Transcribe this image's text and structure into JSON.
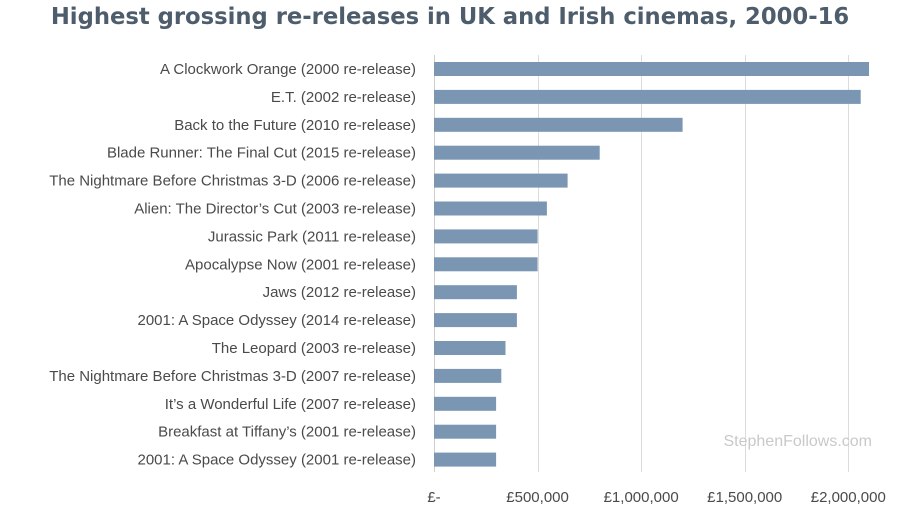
{
  "chart_data": {
    "type": "bar",
    "orientation": "horizontal",
    "title": "Highest grossing re-releases in UK and Irish cinemas, 2000-16",
    "watermark": "StephenFollows.com",
    "categories": [
      "A Clockwork Orange (2000 re-release)",
      "E.T. (2002 re-release)",
      "Back to the Future (2010 re-release)",
      "Blade Runner: The Final Cut (2015 re-release)",
      "The Nightmare Before Christmas 3-D (2006 re-release)",
      "Alien: The Director’s Cut (2003 re-release)",
      "Jurassic Park (2011 re-release)",
      "Apocalypse Now (2001 re-release)",
      "Jaws (2012 re-release)",
      "2001: A Space Odyssey (2014 re-release)",
      "The Leopard (2003 re-release)",
      "The Nightmare Before Christmas 3-D (2007 re-release)",
      "It’s a Wonderful Life (2007 re-release)",
      "Breakfast at Tiffany’s (2001 re-release)",
      "2001: A Space Odyssey (2001 re-release)"
    ],
    "values": [
      2100000,
      2060000,
      1200000,
      800000,
      645000,
      545000,
      500000,
      500000,
      400000,
      400000,
      345000,
      325000,
      300000,
      300000,
      300000
    ],
    "xlim": [
      0,
      2100000
    ],
    "xticks": [
      0,
      500000,
      1000000,
      1500000,
      2000000
    ],
    "xtick_labels": [
      "£-",
      "£500,000",
      "£1,000,000",
      "£1,500,000",
      "£2,000,000"
    ],
    "grid": true,
    "bar_color": "#7b96b2"
  }
}
